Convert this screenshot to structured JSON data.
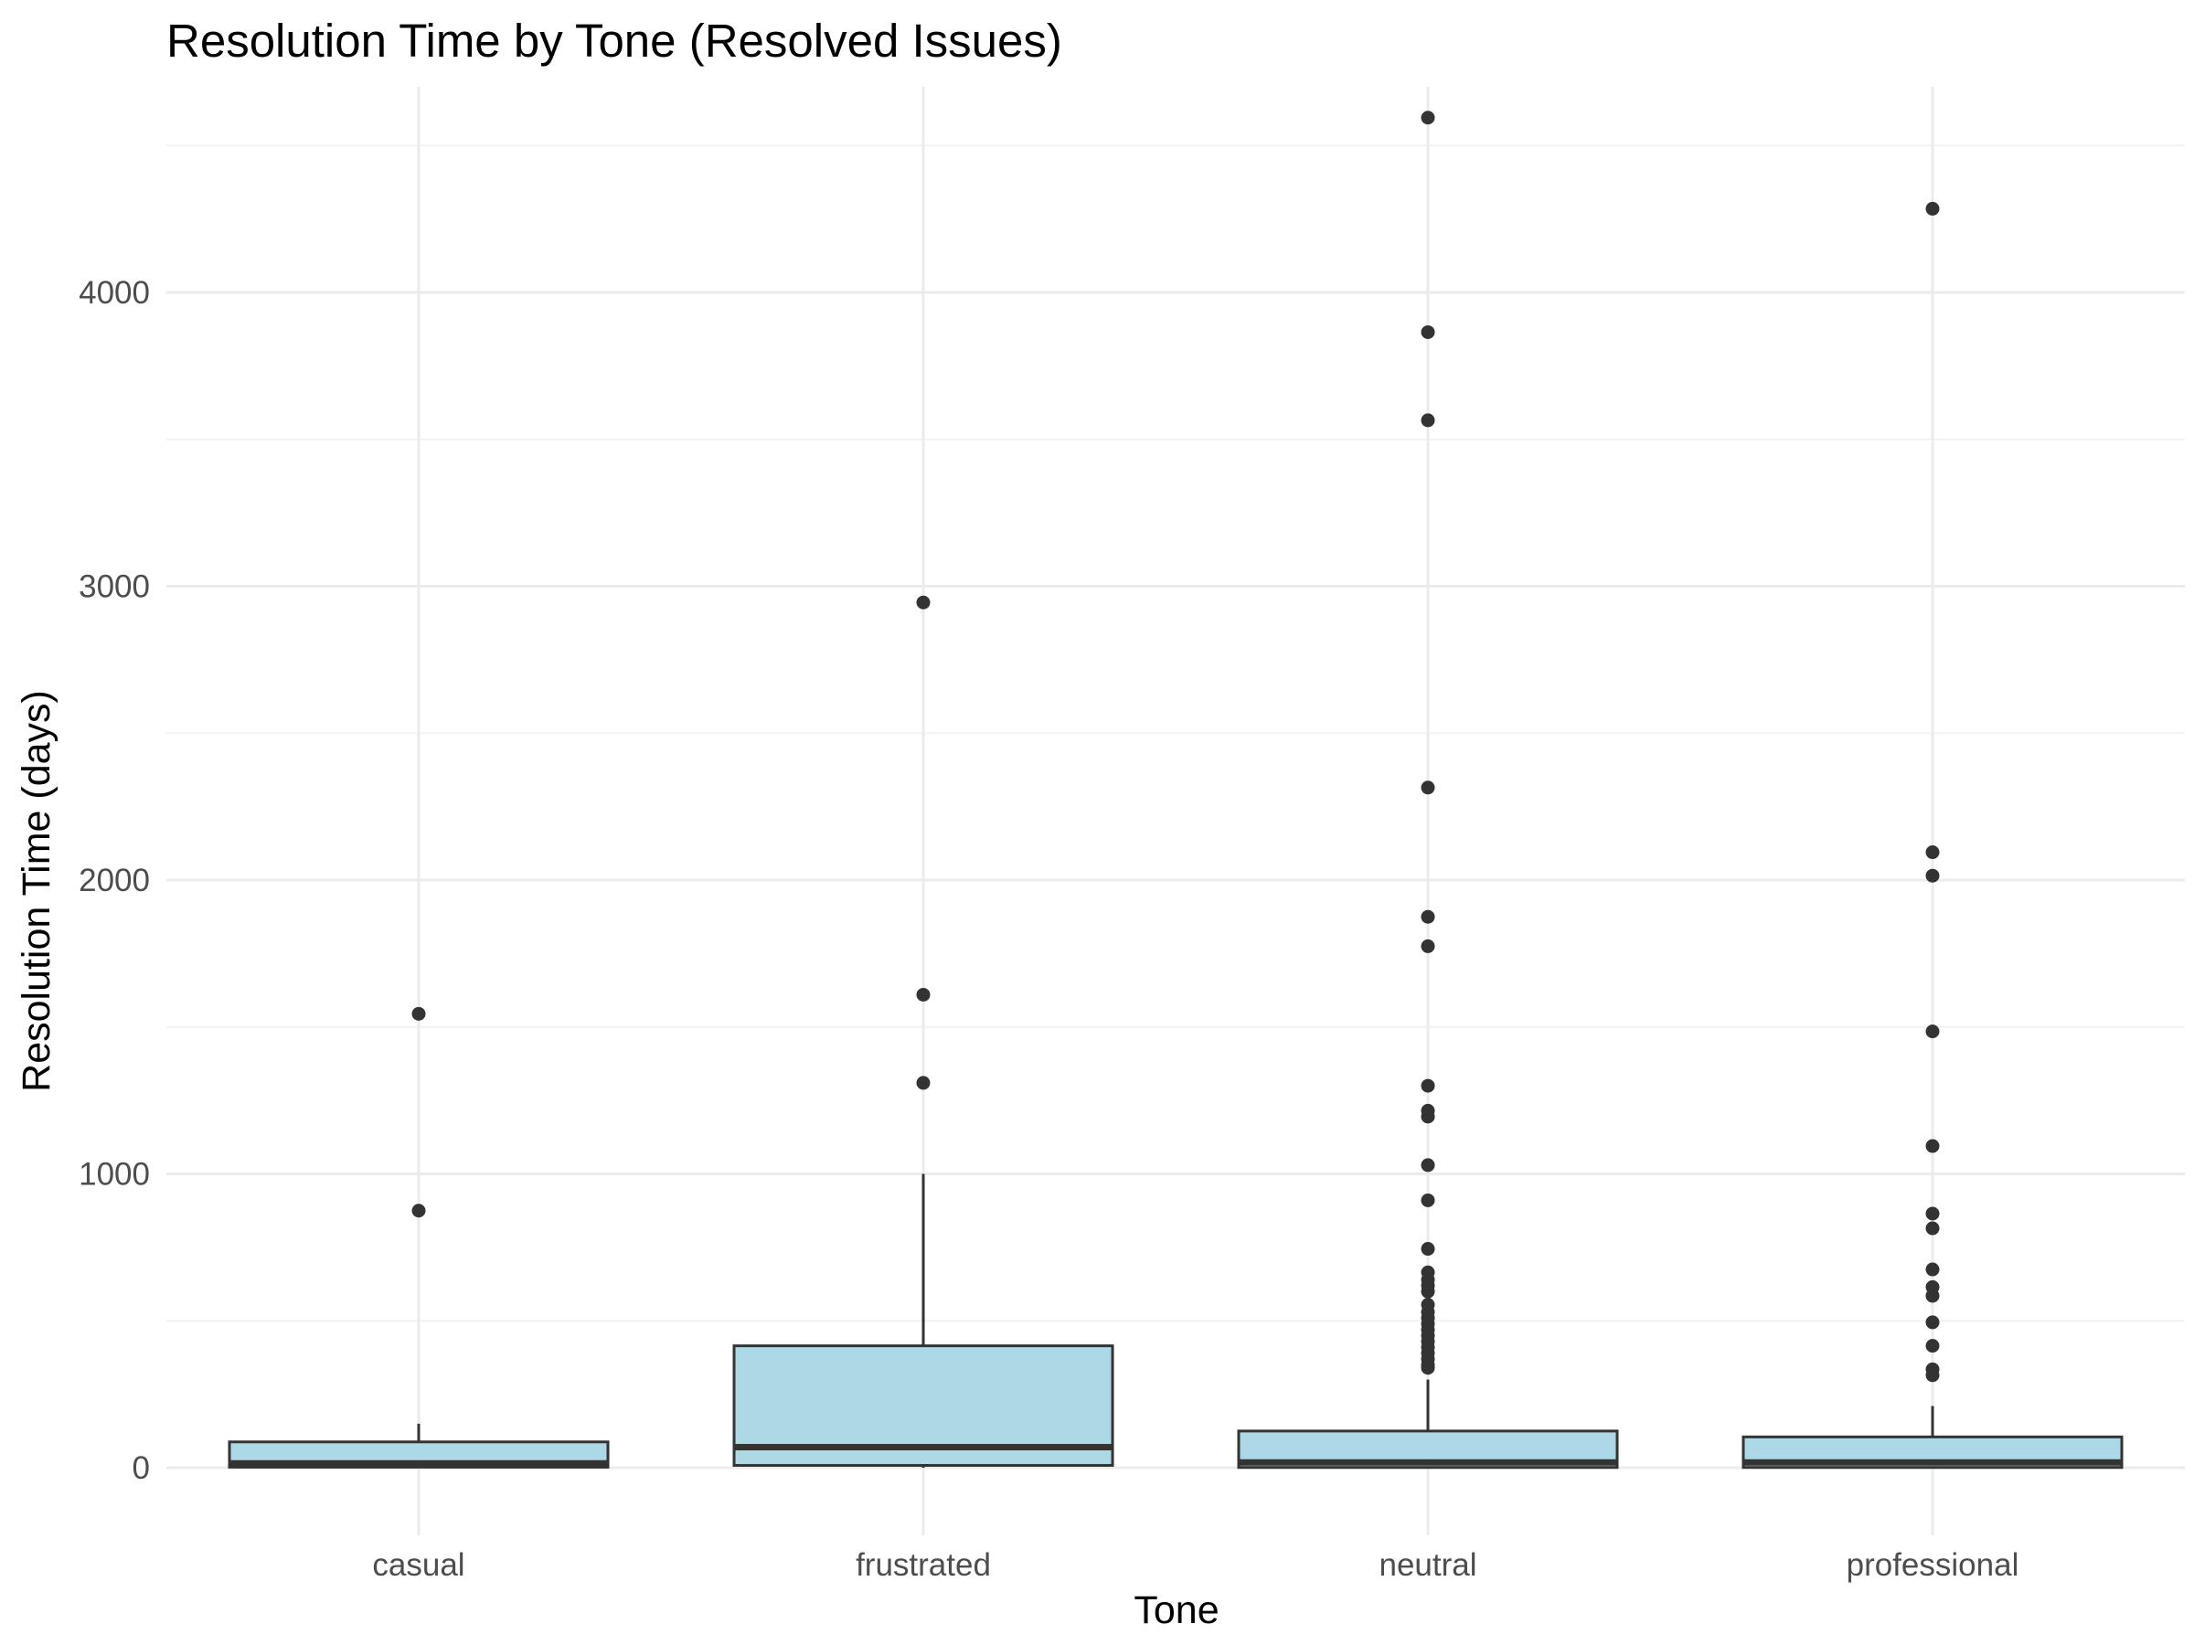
{
  "chart_data": {
    "type": "box",
    "title": "Resolution Time by Tone (Resolved Issues)",
    "xlabel": "Tone",
    "ylabel": "Resolution Time (days)",
    "ylim": [
      -230,
      4700
    ],
    "yticks": [
      0,
      1000,
      2000,
      3000,
      4000
    ],
    "ytick_labels": [
      "0",
      "1000",
      "2000",
      "3000",
      "4000"
    ],
    "grid": true,
    "legend": "none",
    "colors": {
      "box_fill": "#add8e6",
      "box_stroke": "#333333",
      "outlier": "#333333",
      "grid_major": "#ebebeb",
      "grid_minor": "#f2f2f2"
    },
    "categories": [
      "casual",
      "frustrated",
      "neutral",
      "professional"
    ],
    "boxes": [
      {
        "category": "casual",
        "whisker_low": 0,
        "q1": 2,
        "median": 15,
        "q3": 88,
        "whisker_high": 150,
        "outliers": [
          1545,
          875
        ]
      },
      {
        "category": "frustrated",
        "whisker_low": 0,
        "q1": 8,
        "median": 70,
        "q3": 415,
        "whisker_high": 1000,
        "outliers": [
          2945,
          1610,
          1310
        ]
      },
      {
        "category": "neutral",
        "whisker_low": 0,
        "q1": 1,
        "median": 18,
        "q3": 125,
        "whisker_high": 300,
        "outliers": [
          4595,
          3865,
          3565,
          2315,
          1875,
          1775,
          1300,
          1215,
          1195,
          1030,
          910,
          745,
          665,
          640,
          620,
          600,
          555,
          530,
          510,
          490,
          470,
          450,
          430,
          410,
          390,
          370,
          350,
          340
        ]
      },
      {
        "category": "professional",
        "whisker_low": 0,
        "q1": 1,
        "median": 18,
        "q3": 105,
        "whisker_high": 210,
        "outliers": [
          4285,
          2095,
          2015,
          1485,
          1095,
          865,
          815,
          675,
          615,
          585,
          495,
          415,
          335,
          315
        ]
      }
    ]
  }
}
